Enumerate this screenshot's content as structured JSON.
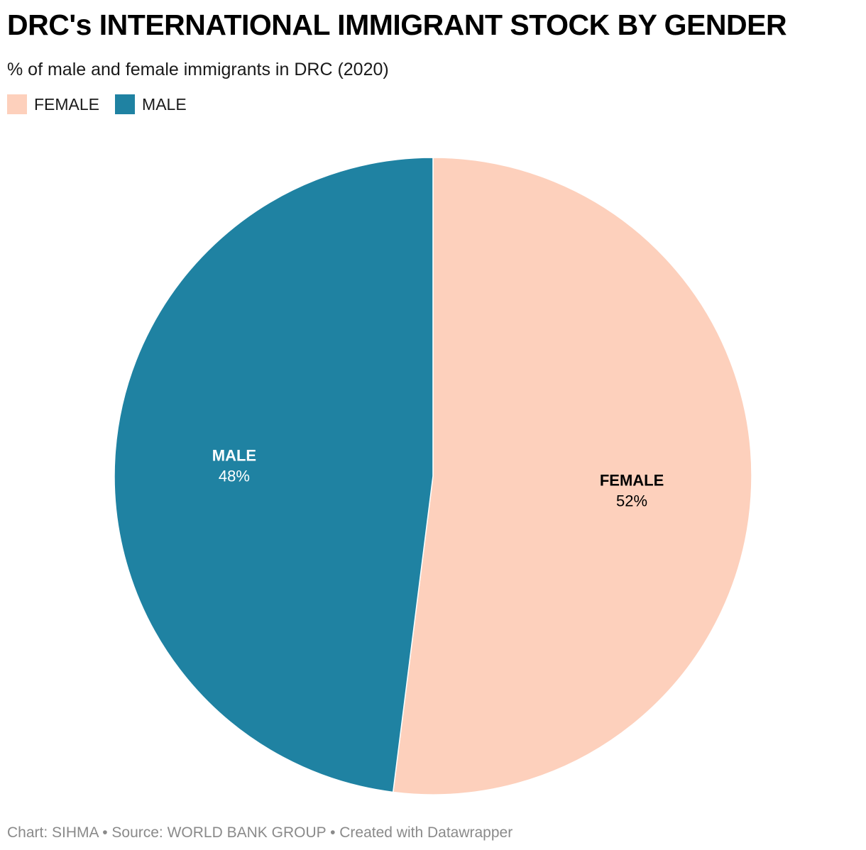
{
  "title": "DRC's INTERNATIONAL IMMIGRANT STOCK BY GENDER",
  "subtitle": "% of male and female immigrants in DRC (2020)",
  "footer": "Chart: SIHMA • Source: WORLD BANK GROUP • Created with Datawrapper",
  "legend": [
    {
      "label": "FEMALE",
      "color": "#fdd0bc"
    },
    {
      "label": "MALE",
      "color": "#1f82a2"
    }
  ],
  "chart_data": {
    "type": "pie",
    "title": "DRC's INTERNATIONAL IMMIGRANT STOCK BY GENDER",
    "subtitle": "% of male and female immigrants in DRC (2020)",
    "legend_position": "top-left",
    "slices": [
      {
        "name": "FEMALE",
        "value": 52,
        "value_label": "52%",
        "color": "#fdd0bc",
        "label_color": "#000000"
      },
      {
        "name": "MALE",
        "value": 48,
        "value_label": "48%",
        "color": "#1f82a2",
        "label_color": "#ffffff"
      }
    ]
  }
}
